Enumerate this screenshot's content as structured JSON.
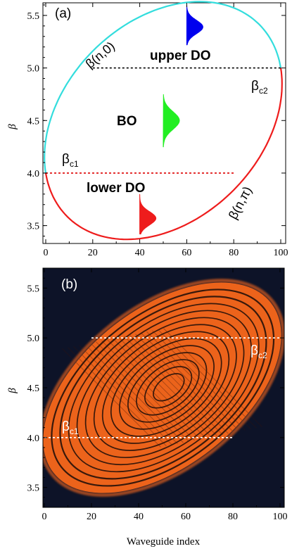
{
  "chart_data": [
    {
      "type": "line",
      "panel_label": "(a)",
      "xlim": [
        0,
        100
      ],
      "ylim": [
        3.33,
        5.62
      ],
      "xticks": [
        "0",
        "20",
        "40",
        "60",
        "80",
        "100"
      ],
      "yticks": [
        "3.5",
        "4.0",
        "4.5",
        "5.0",
        "5.5"
      ],
      "ylabel": "β",
      "grid": false,
      "ellipse": {
        "center": [
          50,
          4.5
        ],
        "left_point": [
          0,
          4.0
        ],
        "right_point": [
          100,
          5.0
        ],
        "top_point": [
          72,
          5.62
        ],
        "bottom_point": [
          28,
          3.38
        ]
      },
      "series": [
        {
          "name": "β(n,0)",
          "color": "#33dddd"
        },
        {
          "name": "β(n,π)",
          "color": "#ee1c1c"
        }
      ],
      "thresholds": [
        {
          "label": "β",
          "sub": "c2",
          "y": 5.0,
          "x": [
            20,
            100
          ],
          "color": "#000000"
        },
        {
          "label": "β",
          "sub": "c1",
          "y": 4.0,
          "x": [
            0,
            80
          ],
          "color": "#dd0000"
        }
      ],
      "regions": [
        {
          "label": "upper DO",
          "color": "#0000ee",
          "x": 60,
          "y_range": [
            5.22,
            5.6
          ]
        },
        {
          "label": "BO",
          "color": "#22ee22",
          "x": 50,
          "y_range": [
            4.25,
            4.75
          ]
        },
        {
          "label": "lower DO",
          "color": "#ee1c1c",
          "x": 40,
          "y_range": [
            3.42,
            3.8
          ]
        }
      ]
    },
    {
      "type": "heatmap",
      "panel_label": "(b)",
      "xlim": [
        0,
        100
      ],
      "ylim": [
        3.3,
        5.7
      ],
      "xticks": [
        "0",
        "20",
        "40",
        "60",
        "80",
        "100"
      ],
      "yticks": [
        "3.5",
        "4.0",
        "4.5",
        "5.0",
        "5.5"
      ],
      "xlabel": "Waveguide index",
      "ylabel": "β",
      "grid": false,
      "colormap": [
        "#0d1328",
        "#ff6a1a"
      ],
      "thresholds": [
        {
          "label": "β",
          "sub": "c2",
          "y": 5.0,
          "x": [
            20,
            100
          ],
          "color": "#ffffff"
        },
        {
          "label": "β",
          "sub": "c1",
          "y": 4.0,
          "x": [
            0,
            80
          ],
          "color": "#ffffff"
        }
      ]
    }
  ]
}
